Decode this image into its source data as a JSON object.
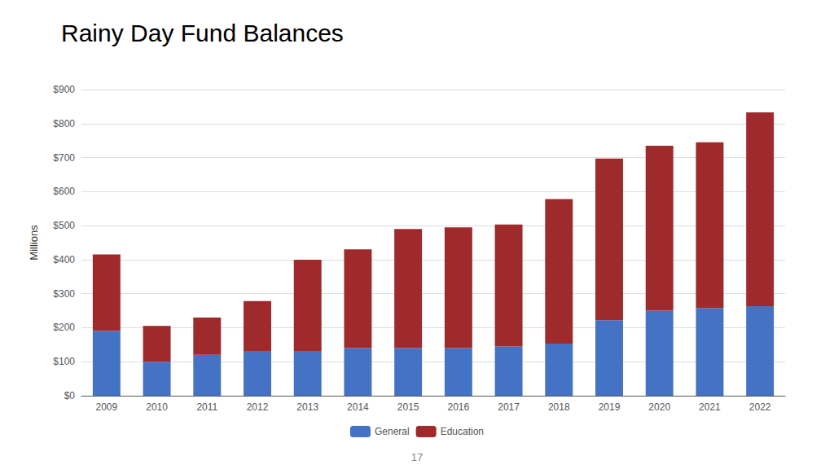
{
  "chart_data": {
    "type": "bar",
    "title": "Rainy Day Fund Balances",
    "categories": [
      "2009",
      "2010",
      "2011",
      "2012",
      "2013",
      "2014",
      "2015",
      "2016",
      "2017",
      "2018",
      "2019",
      "2020",
      "2021",
      "2022"
    ],
    "series": [
      {
        "name": "General",
        "color": "#4472C4",
        "values": [
          190,
          100,
          120,
          130,
          130,
          140,
          140,
          140,
          145,
          153,
          222,
          250,
          258,
          263
        ]
      },
      {
        "name": "Education",
        "color": "#9E2A2B",
        "values": [
          225,
          105,
          110,
          148,
          270,
          290,
          350,
          355,
          358,
          425,
          475,
          485,
          487,
          570
        ]
      }
    ],
    "stacked": true,
    "ylabel": "Millions",
    "ylim": [
      0,
      900
    ],
    "yticks": [
      {
        "value": 0,
        "label": "$0"
      },
      {
        "value": 100,
        "label": "$100"
      },
      {
        "value": 200,
        "label": "$200"
      },
      {
        "value": 300,
        "label": "$300"
      },
      {
        "value": 400,
        "label": "$400"
      },
      {
        "value": 500,
        "label": "$500"
      },
      {
        "value": 600,
        "label": "$600"
      },
      {
        "value": 700,
        "label": "$700"
      },
      {
        "value": 800,
        "label": "$800"
      },
      {
        "value": 900,
        "label": "$900"
      }
    ],
    "grid": true,
    "legend": "bottom",
    "annotations": [
      "17"
    ]
  }
}
